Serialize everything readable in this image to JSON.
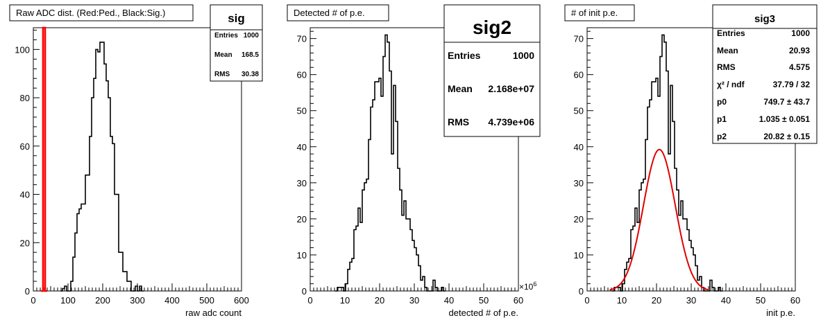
{
  "chart_data": [
    {
      "type": "histogram",
      "title": "Raw ADC dist. (Red:Ped., Black:Sig.)",
      "xlabel": "raw adc count",
      "ylabel": "",
      "xlim": [
        0,
        600
      ],
      "ylim": [
        0,
        109
      ],
      "xticks": [
        "0",
        "100",
        "200",
        "300",
        "400",
        "500",
        "600"
      ],
      "yticks": [
        "0",
        "20",
        "40",
        "60",
        "80",
        "100"
      ],
      "x_tick_values": [
        0,
        100,
        200,
        300,
        400,
        500,
        600
      ],
      "y_tick_values": [
        0,
        20,
        40,
        60,
        80,
        100
      ],
      "bin_width": 6,
      "series": [
        {
          "color": "#000000",
          "x_start": 78,
          "values": [
            0,
            1,
            2,
            0,
            0,
            4,
            14,
            24,
            32,
            34,
            36,
            36,
            48,
            48,
            64,
            80,
            88,
            100,
            99,
            103,
            103,
            94,
            87,
            80,
            64,
            61,
            40,
            40,
            16,
            16,
            8,
            8,
            4,
            4,
            0,
            0,
            2,
            0,
            2,
            0
          ]
        },
        {
          "color": "#ff0000",
          "x_start": 22,
          "values": [
            0,
            109,
            0
          ]
        }
      ],
      "stats": {
        "name": "sig",
        "rows": [
          {
            "label": "Entries",
            "value": "1000"
          },
          {
            "label": "Mean",
            "value": "168.5"
          },
          {
            "label": "RMS",
            "value": "30.38"
          }
        ]
      }
    },
    {
      "type": "histogram",
      "title": "Detected # of p.e.",
      "xlabel": "detected # of p.e.",
      "ylabel": "",
      "exponent_label": "×10",
      "exponent_power": "6",
      "xlim": [
        0,
        60
      ],
      "ylim": [
        0,
        73
      ],
      "xticks": [
        "0",
        "10",
        "20",
        "30",
        "40",
        "50",
        "60"
      ],
      "yticks": [
        "0",
        "10",
        "20",
        "30",
        "40",
        "50",
        "60",
        "70"
      ],
      "x_tick_values": [
        0,
        10,
        20,
        30,
        40,
        50,
        60
      ],
      "y_tick_values": [
        0,
        10,
        20,
        30,
        40,
        50,
        60,
        70
      ],
      "bin_width": 0.6,
      "series": [
        {
          "color": "#000000",
          "x_start": 7.2,
          "values": [
            0,
            1,
            1,
            1,
            0,
            2,
            6,
            8,
            9,
            17,
            18,
            23,
            19,
            28,
            30,
            31,
            42,
            51,
            53,
            58,
            58,
            59,
            54,
            65,
            71,
            69,
            61,
            38,
            57,
            47,
            34,
            28,
            21,
            25,
            20,
            20,
            17,
            14,
            12,
            10,
            7,
            3,
            4,
            1,
            0,
            0,
            0,
            3,
            1,
            0,
            0,
            1,
            0
          ]
        }
      ],
      "stats": {
        "name": "sig2",
        "rows": [
          {
            "label": "Entries",
            "value": "1000"
          },
          {
            "label": "Mean",
            "value": "2.168e+07"
          },
          {
            "label": "RMS",
            "value": "4.739e+06"
          }
        ]
      }
    },
    {
      "type": "histogram",
      "title": "# of init p.e.",
      "xlabel": "init p.e.",
      "ylabel": "",
      "xlim": [
        0,
        60
      ],
      "ylim": [
        0,
        73
      ],
      "xticks": [
        "0",
        "10",
        "20",
        "30",
        "40",
        "50",
        "60"
      ],
      "yticks": [
        "0",
        "10",
        "20",
        "30",
        "40",
        "50",
        "60",
        "70"
      ],
      "x_tick_values": [
        0,
        10,
        20,
        30,
        40,
        50,
        60
      ],
      "y_tick_values": [
        0,
        10,
        20,
        30,
        40,
        50,
        60,
        70
      ],
      "bin_width": 0.6,
      "fit_curve": {
        "color": "#e00000",
        "p0": 749.7,
        "p1": 1.035,
        "p2": 20.82,
        "x_range": [
          6.5,
          35
        ]
      },
      "series": [
        {
          "color": "#000000",
          "x_start": 7.2,
          "values": [
            0,
            1,
            1,
            1,
            0,
            2,
            6,
            8,
            9,
            17,
            18,
            23,
            19,
            28,
            30,
            31,
            42,
            51,
            53,
            58,
            58,
            59,
            54,
            65,
            71,
            69,
            61,
            38,
            57,
            47,
            34,
            28,
            21,
            25,
            20,
            20,
            17,
            14,
            12,
            10,
            7,
            3,
            4,
            1,
            0,
            0,
            0,
            3,
            1,
            0,
            0,
            1,
            0
          ]
        }
      ],
      "stats": {
        "name": "sig3",
        "rows": [
          {
            "label": "Entries",
            "value": "1000"
          },
          {
            "label": "Mean",
            "value": "20.93"
          },
          {
            "label": "RMS",
            "value": "4.575"
          },
          {
            "label": "χ² / ndf",
            "value": "37.79 / 32"
          },
          {
            "label": "p0",
            "value": "749.7 ± 43.7"
          },
          {
            "label": "p1",
            "value": "1.035 ± 0.051"
          },
          {
            "label": "p2",
            "value": "20.82 ± 0.15"
          }
        ]
      }
    }
  ]
}
